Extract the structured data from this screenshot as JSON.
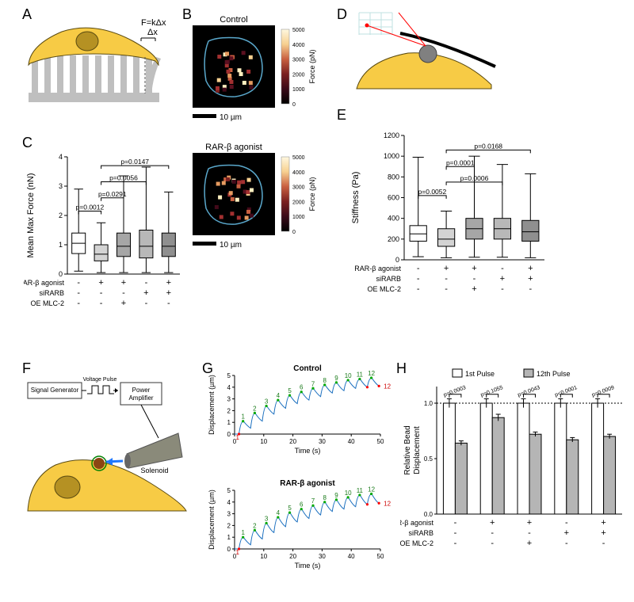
{
  "panel_labels": {
    "A": "A",
    "B": "B",
    "C": "C",
    "D": "D",
    "E": "E",
    "F": "F",
    "G": "G",
    "H": "H"
  },
  "panelA": {
    "cell_color": "#f7cb45",
    "pillar_color": "#bfbfbf",
    "nucleus_color": "#b59123",
    "formula_top": "F=kΔx",
    "formula_bottom": "Δx"
  },
  "panelB": {
    "title_top": "Control",
    "title_bottom": "RAR-β agonist",
    "bg": "#000000",
    "outline": "#5aa8cc",
    "colorbar_label": "Force (pN)",
    "colorbar_ticks": [
      "0",
      "1000",
      "2000",
      "3000",
      "4000",
      "5000"
    ],
    "scalebar_label": "10 µm",
    "dot_colors": [
      "#430a1a",
      "#5c1020",
      "#7a2020",
      "#a33030",
      "#c96040",
      "#e69b60",
      "#f7d090",
      "#fff0c0"
    ]
  },
  "panelC": {
    "type": "boxplot",
    "ylabel": "Mean Max Force (nN)",
    "ylim": [
      0,
      4
    ],
    "yticks": [
      0,
      1,
      2,
      3,
      4
    ],
    "categories": [
      {
        "fill": "#ffffff",
        "median": 1.05,
        "q1": 0.7,
        "q3": 1.4,
        "wlo": 0.1,
        "whi": 2.9
      },
      {
        "fill": "#d3d3d3",
        "median": 0.68,
        "q1": 0.45,
        "q3": 1.0,
        "wlo": 0.05,
        "whi": 1.75
      },
      {
        "fill": "#a6a6a6",
        "median": 0.95,
        "q1": 0.6,
        "q3": 1.4,
        "wlo": 0.05,
        "whi": 3.35
      },
      {
        "fill": "#b8b8b8",
        "median": 0.95,
        "q1": 0.55,
        "q3": 1.5,
        "wlo": 0.05,
        "whi": 3.65
      },
      {
        "fill": "#8f8f8f",
        "median": 0.95,
        "q1": 0.6,
        "q3": 1.4,
        "wlo": 0.05,
        "whi": 2.8
      }
    ],
    "pvalues": [
      {
        "text": "p=0.0012",
        "from": 0,
        "to": 1,
        "y": 2.15
      },
      {
        "text": "p=0.0291",
        "from": 1,
        "to": 2,
        "y": 2.6
      },
      {
        "text": "p=0.0056",
        "from": 1,
        "to": 3,
        "y": 3.15
      },
      {
        "text": "p=0.0147",
        "from": 1,
        "to": 4,
        "y": 3.7
      }
    ],
    "xfactors": [
      {
        "name": "RAR-β agonist",
        "vals": [
          "-",
          "+",
          "+",
          "-",
          "+"
        ]
      },
      {
        "name": "siRARB",
        "vals": [
          "-",
          "-",
          "-",
          "+",
          "+"
        ]
      },
      {
        "name": "OE MLC-2",
        "vals": [
          "-",
          "-",
          "+",
          "-",
          "-"
        ]
      }
    ]
  },
  "panelD": {
    "cell_color": "#f7cb45",
    "cantilever_color": "#000000",
    "bead_color": "#808080",
    "laser_color": "#ff0000",
    "grid_color": "#bfe0e0"
  },
  "panelE": {
    "type": "boxplot",
    "ylabel": "Stiffness (Pa)",
    "ylim": [
      0,
      1200
    ],
    "yticks": [
      0,
      200,
      400,
      600,
      800,
      1000,
      1200
    ],
    "categories": [
      {
        "fill": "#ffffff",
        "median": 250,
        "q1": 180,
        "q3": 330,
        "wlo": 30,
        "whi": 990
      },
      {
        "fill": "#d3d3d3",
        "median": 200,
        "q1": 130,
        "q3": 300,
        "wlo": 20,
        "whi": 470
      },
      {
        "fill": "#a6a6a6",
        "median": 300,
        "q1": 200,
        "q3": 400,
        "wlo": 25,
        "whi": 1000
      },
      {
        "fill": "#b8b8b8",
        "median": 300,
        "q1": 200,
        "q3": 400,
        "wlo": 25,
        "whi": 920
      },
      {
        "fill": "#8f8f8f",
        "median": 270,
        "q1": 180,
        "q3": 380,
        "wlo": 20,
        "whi": 830
      }
    ],
    "pvalues": [
      {
        "text": "p=0.0052",
        "from": 0,
        "to": 1,
        "y": 620
      },
      {
        "text": "p=0.0006",
        "from": 1,
        "to": 3,
        "y": 750
      },
      {
        "text": "p=0.0001",
        "from": 1,
        "to": 2,
        "y": 900
      },
      {
        "text": "p=0.0168",
        "from": 1,
        "to": 4,
        "y": 1060
      }
    ],
    "xfactors": [
      {
        "name": "RAR-β agonist",
        "vals": [
          "-",
          "+",
          "+",
          "-",
          "+"
        ]
      },
      {
        "name": "siRARB",
        "vals": [
          "-",
          "-",
          "-",
          "+",
          "+"
        ]
      },
      {
        "name": "OE MLC-2",
        "vals": [
          "-",
          "-",
          "+",
          "-",
          "-"
        ]
      }
    ]
  },
  "panelF": {
    "cell_color": "#f7cb45",
    "nucleus_color": "#b59123",
    "bead_fill": "#8b4513",
    "bead_ring": "#008000",
    "solenoid_color": "#8a8a7a",
    "box_stroke": "#343434",
    "labels": {
      "gen": "Signal Generator",
      "pulse": "Voltage Pulse",
      "amp": "Power\nAmplifier",
      "sol": "Solenoid"
    },
    "arrow_color": "#1f77ff"
  },
  "panelG": {
    "title_top": "Control",
    "title_bottom": "RAR-β agonist",
    "xlabel": "Time (s)",
    "ylabel": "Displacement (µm)",
    "xlim": [
      0,
      50
    ],
    "xticks": [
      0,
      10,
      20,
      30,
      40,
      50
    ],
    "ylim": [
      0,
      5
    ],
    "yticks": [
      0,
      1,
      2,
      3,
      4,
      5
    ],
    "line_color": "#1a6fbf",
    "number_fontsize": 8,
    "top": {
      "pulses": [
        {
          "n": 1,
          "t": 1.5,
          "peak": 1.1,
          "trough": 0.5
        },
        {
          "n": 2,
          "t": 5.5,
          "peak": 1.8,
          "trough": 1.1
        },
        {
          "n": 3,
          "t": 9.5,
          "peak": 2.4,
          "trough": 1.7
        },
        {
          "n": 4,
          "t": 13.5,
          "peak": 2.9,
          "trough": 2.2
        },
        {
          "n": 5,
          "t": 17.5,
          "peak": 3.3,
          "trough": 2.6
        },
        {
          "n": 6,
          "t": 21.5,
          "peak": 3.6,
          "trough": 2.9
        },
        {
          "n": 7,
          "t": 25.5,
          "peak": 3.9,
          "trough": 3.2
        },
        {
          "n": 8,
          "t": 29.5,
          "peak": 4.2,
          "trough": 3.5
        },
        {
          "n": 9,
          "t": 33.5,
          "peak": 4.4,
          "trough": 3.7
        },
        {
          "n": 10,
          "t": 37.5,
          "peak": 4.6,
          "trough": 3.9
        },
        {
          "n": 11,
          "t": 41.5,
          "peak": 4.7,
          "trough": 4.0
        },
        {
          "n": 12,
          "t": 45.5,
          "peak": 4.8,
          "trough": 4.1
        }
      ]
    },
    "bottom": {
      "pulses": [
        {
          "n": 1,
          "t": 1.5,
          "peak": 1.0,
          "trough": 0.35
        },
        {
          "n": 2,
          "t": 5.5,
          "peak": 1.6,
          "trough": 0.85
        },
        {
          "n": 3,
          "t": 9.5,
          "peak": 2.2,
          "trough": 1.4
        },
        {
          "n": 4,
          "t": 13.5,
          "peak": 2.7,
          "trough": 1.9
        },
        {
          "n": 5,
          "t": 17.5,
          "peak": 3.1,
          "trough": 2.3
        },
        {
          "n": 6,
          "t": 21.5,
          "peak": 3.4,
          "trough": 2.6
        },
        {
          "n": 7,
          "t": 25.5,
          "peak": 3.7,
          "trough": 2.9
        },
        {
          "n": 8,
          "t": 29.5,
          "peak": 4.0,
          "trough": 3.2
        },
        {
          "n": 9,
          "t": 33.5,
          "peak": 4.2,
          "trough": 3.4
        },
        {
          "n": 10,
          "t": 37.5,
          "peak": 4.4,
          "trough": 3.6
        },
        {
          "n": 11,
          "t": 41.5,
          "peak": 4.6,
          "trough": 3.8
        },
        {
          "n": 12,
          "t": 45.5,
          "peak": 4.7,
          "trough": 3.9
        }
      ]
    },
    "marker_first": "#ff0000",
    "marker_peak": "#00aa00"
  },
  "panelH": {
    "type": "grouped_bar",
    "ylabel": "Relative Bead\nDisplacement",
    "ylim": [
      0,
      1.15
    ],
    "ref_line": 1.0,
    "yticks": [
      0,
      0.5,
      1.0
    ],
    "legend": [
      {
        "label": "1st Pulse",
        "fill": "#ffffff"
      },
      {
        "label": "12th Pulse",
        "fill": "#b5b5b5"
      }
    ],
    "groups": [
      {
        "first": 1.0,
        "first_err": 0.04,
        "twelfth": 0.64,
        "twelfth_err": 0.02
      },
      {
        "first": 1.0,
        "first_err": 0.04,
        "twelfth": 0.87,
        "twelfth_err": 0.03
      },
      {
        "first": 1.0,
        "first_err": 0.04,
        "twelfth": 0.72,
        "twelfth_err": 0.02
      },
      {
        "first": 1.0,
        "first_err": 0.04,
        "twelfth": 0.67,
        "twelfth_err": 0.02
      },
      {
        "first": 1.0,
        "first_err": 0.04,
        "twelfth": 0.7,
        "twelfth_err": 0.02
      }
    ],
    "pvalues": [
      {
        "text": "p=0.0003",
        "col": 0
      },
      {
        "text": "p=0.1055",
        "col": 1
      },
      {
        "text": "p=0.0043",
        "col": 2
      },
      {
        "text": "p<0.0001",
        "col": 3
      },
      {
        "text": "p=0.0009",
        "col": 4
      }
    ],
    "xfactors": [
      {
        "name": "RAR-β agonist",
        "vals": [
          "-",
          "+",
          "+",
          "-",
          "+"
        ]
      },
      {
        "name": "siRARB",
        "vals": [
          "-",
          "-",
          "-",
          "+",
          "+"
        ]
      },
      {
        "name": "OE MLC-2",
        "vals": [
          "-",
          "-",
          "+",
          "-",
          "-"
        ]
      }
    ]
  }
}
